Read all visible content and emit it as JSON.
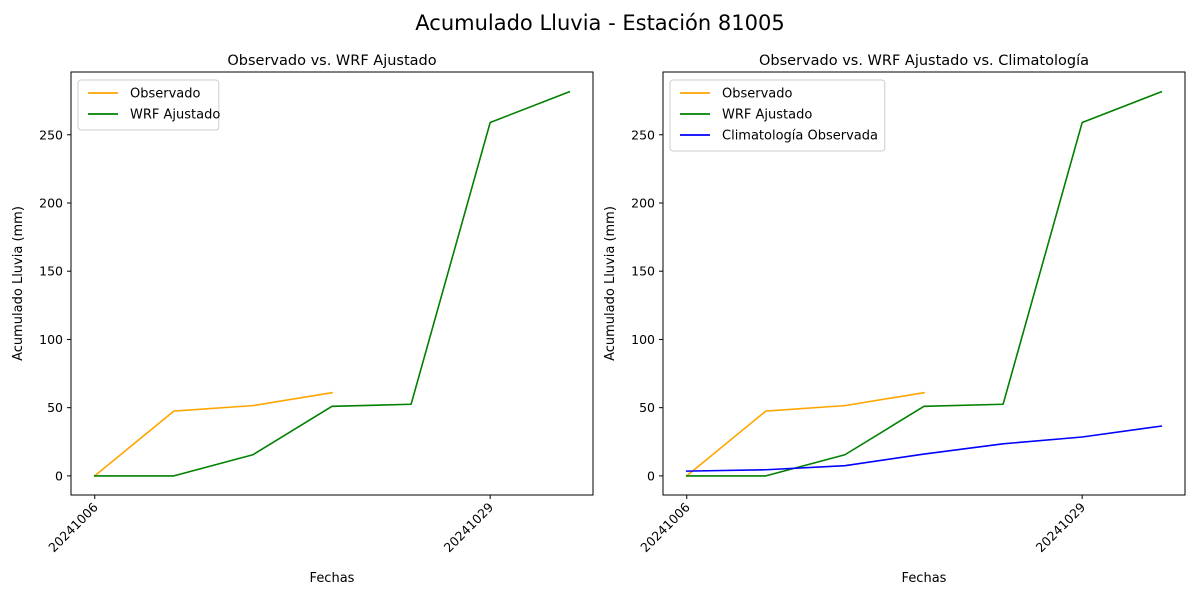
{
  "suptitle": "Acumulado Lluvia - Estación 81005",
  "chart_data": [
    {
      "type": "line",
      "title": "Observado vs. WRF Ajustado",
      "xlabel": "Fechas",
      "ylabel": "Acumulado Lluvia (mm)",
      "x": [
        0,
        1,
        2,
        3,
        4,
        5,
        6
      ],
      "xticks": [
        {
          "pos": 0,
          "label": "20241006"
        },
        {
          "pos": 5,
          "label": "20241029"
        }
      ],
      "yticks": [
        0,
        50,
        100,
        150,
        200,
        250
      ],
      "xlim": [
        -0.3,
        6.3
      ],
      "ylim": [
        -14,
        296
      ],
      "legend_position": "upper-left",
      "series": [
        {
          "name": "Observado",
          "color": "#FFA500",
          "x": [
            0,
            1,
            2,
            3
          ],
          "values": [
            0,
            47.5,
            51.5,
            61
          ]
        },
        {
          "name": "WRF Ajustado",
          "color": "#008000",
          "x": [
            0,
            1,
            2,
            3,
            4,
            5,
            6
          ],
          "values": [
            0,
            0,
            15.5,
            51,
            52.5,
            259,
            281.5
          ]
        }
      ]
    },
    {
      "type": "line",
      "title": "Observado vs. WRF Ajustado vs. Climatología",
      "xlabel": "Fechas",
      "ylabel": "Acumulado Lluvia (mm)",
      "x": [
        0,
        1,
        2,
        3,
        4,
        5,
        6
      ],
      "xticks": [
        {
          "pos": 0,
          "label": "20241006"
        },
        {
          "pos": 5,
          "label": "20241029"
        }
      ],
      "yticks": [
        0,
        50,
        100,
        150,
        200,
        250
      ],
      "xlim": [
        -0.3,
        6.3
      ],
      "ylim": [
        -14,
        296
      ],
      "legend_position": "upper-left",
      "series": [
        {
          "name": "Observado",
          "color": "#FFA500",
          "x": [
            0,
            1,
            2,
            3
          ],
          "values": [
            0,
            47.5,
            51.5,
            61
          ]
        },
        {
          "name": "WRF Ajustado",
          "color": "#008000",
          "x": [
            0,
            1,
            2,
            3,
            4,
            5,
            6
          ],
          "values": [
            0,
            0,
            15.5,
            51,
            52.5,
            259,
            281.5
          ]
        },
        {
          "name": "Climatología Observada",
          "color": "#0000FF",
          "x": [
            0,
            1,
            2,
            3,
            4,
            5,
            6
          ],
          "values": [
            3.5,
            4.5,
            7.5,
            16,
            23.5,
            28.5,
            36.5
          ]
        }
      ]
    }
  ]
}
